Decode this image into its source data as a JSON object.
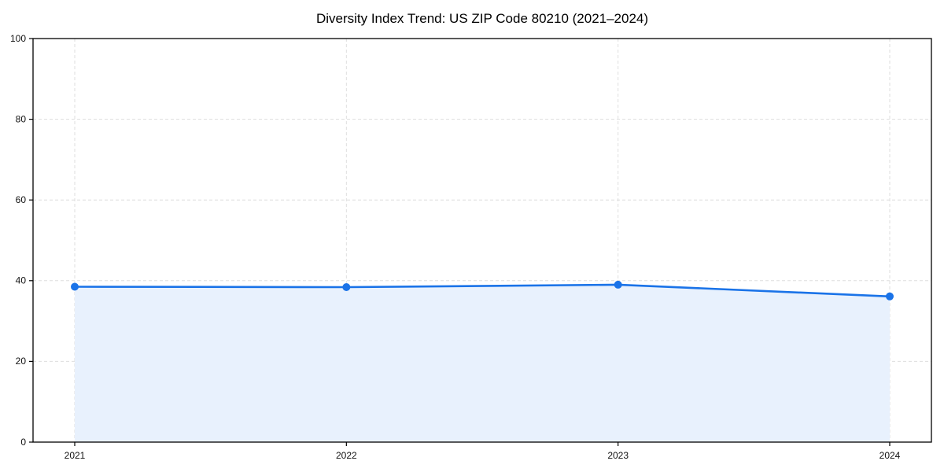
{
  "chart_data": {
    "type": "area",
    "title": "Diversity Index Trend: US ZIP Code 80210 (2021–2024)",
    "x": [
      "2021",
      "2022",
      "2023",
      "2024"
    ],
    "values": [
      38.5,
      38.4,
      39.0,
      36.1
    ],
    "series_name": "Diversity Index",
    "xlabel": "",
    "ylabel": "",
    "ylim": [
      0,
      100
    ],
    "yticks": [
      0,
      20,
      40,
      60,
      80,
      100
    ],
    "grid": true,
    "grid_style": "dashed",
    "legend_position": "none",
    "colors": {
      "line": "#1a73e8",
      "marker": "#1a73e8",
      "fill": "#e8f1fd",
      "grid": "#dedede",
      "axis": "#000000",
      "tick_text": "#111111",
      "background": "#ffffff"
    }
  }
}
